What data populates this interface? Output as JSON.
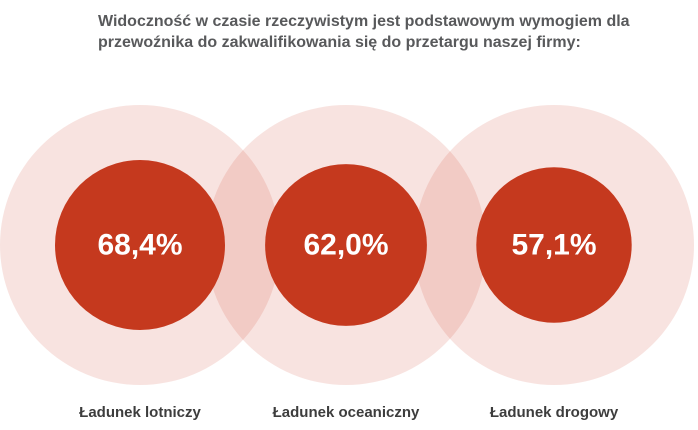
{
  "title": "Widoczność w czasie rzeczywistym jest podstawowym wymogiem dla przewoźnika do zakwalifikowania się do przetargu naszej firmy:",
  "colors": {
    "halo": "#cf3a24",
    "halo_opacity": 0.14,
    "circle": "#c5391e",
    "value_text": "#ffffff",
    "category_text": "#3d3d3d",
    "title_text": "#58595b"
  },
  "chart_data": {
    "type": "bubble",
    "categories": [
      "Ładunek lotniczy",
      "Ładunek oceaniczny",
      "Ładunek drogowy"
    ],
    "values": [
      68.4,
      62.0,
      57.1
    ],
    "value_labels": [
      "68,4%",
      "62,0%",
      "57,1%"
    ],
    "unit": "%"
  }
}
